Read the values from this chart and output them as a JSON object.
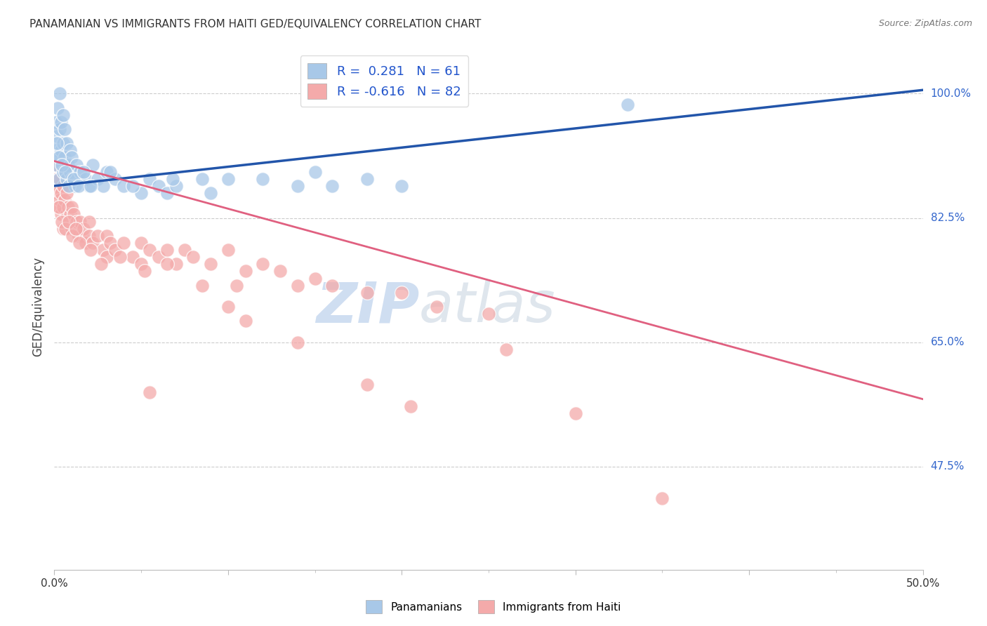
{
  "title": "PANAMANIAN VS IMMIGRANTS FROM HAITI GED/EQUIVALENCY CORRELATION CHART",
  "source": "Source: ZipAtlas.com",
  "ylabel": "GED/Equivalency",
  "yticks": [
    47.5,
    65.0,
    82.5,
    100.0
  ],
  "ytick_labels": [
    "47.5%",
    "65.0%",
    "82.5%",
    "100.0%"
  ],
  "xmin": 0.0,
  "xmax": 50.0,
  "ymin": 33.0,
  "ymax": 107.0,
  "legend_blue_label": "R =  0.281   N = 61",
  "legend_pink_label": "R = -0.616   N = 82",
  "legend_label_panamanians": "Panamanians",
  "legend_label_haiti": "Immigrants from Haiti",
  "watermark_zip": "ZIP",
  "watermark_atlas": "atlas",
  "blue_color": "#A8C8E8",
  "pink_color": "#F4AAAA",
  "blue_line_color": "#2255AA",
  "pink_line_color": "#E06080",
  "background_color": "#FFFFFF",
  "blue_line_x0": 0.0,
  "blue_line_y0": 87.0,
  "blue_line_x1": 50.0,
  "blue_line_y1": 100.5,
  "pink_line_x0": 0.0,
  "pink_line_y0": 90.5,
  "pink_line_x1": 50.0,
  "pink_line_y1": 57.0,
  "blue_points_x": [
    0.1,
    0.1,
    0.15,
    0.2,
    0.2,
    0.25,
    0.3,
    0.3,
    0.35,
    0.4,
    0.4,
    0.5,
    0.5,
    0.5,
    0.6,
    0.6,
    0.7,
    0.7,
    0.8,
    0.9,
    0.9,
    1.0,
    1.0,
    1.2,
    1.3,
    1.5,
    1.8,
    2.0,
    2.2,
    2.5,
    2.8,
    3.0,
    3.5,
    4.0,
    5.0,
    5.5,
    6.0,
    6.5,
    7.0,
    8.5,
    9.0,
    10.0,
    12.0,
    14.0,
    15.0,
    16.0,
    18.0,
    20.0,
    0.15,
    0.25,
    0.45,
    0.65,
    0.85,
    1.1,
    1.4,
    1.7,
    2.1,
    3.2,
    4.5,
    6.8,
    33.0
  ],
  "blue_points_y": [
    92.0,
    96.0,
    90.0,
    94.0,
    98.0,
    88.0,
    95.0,
    100.0,
    91.0,
    92.0,
    96.0,
    89.0,
    93.0,
    97.0,
    91.0,
    95.0,
    88.0,
    93.0,
    90.0,
    89.0,
    92.0,
    88.0,
    91.0,
    87.0,
    90.0,
    89.0,
    88.0,
    87.0,
    90.0,
    88.0,
    87.0,
    89.0,
    88.0,
    87.0,
    86.0,
    88.0,
    87.0,
    86.0,
    87.0,
    88.0,
    86.0,
    88.0,
    88.0,
    87.0,
    89.0,
    87.0,
    88.0,
    87.0,
    93.0,
    91.0,
    90.0,
    89.0,
    87.0,
    88.0,
    87.0,
    89.0,
    87.0,
    89.0,
    87.0,
    88.0,
    98.5
  ],
  "pink_points_x": [
    0.1,
    0.1,
    0.15,
    0.2,
    0.2,
    0.3,
    0.3,
    0.4,
    0.4,
    0.5,
    0.5,
    0.5,
    0.6,
    0.7,
    0.7,
    0.8,
    0.8,
    0.9,
    1.0,
    1.0,
    1.1,
    1.2,
    1.3,
    1.4,
    1.5,
    1.6,
    1.7,
    1.8,
    2.0,
    2.0,
    2.2,
    2.5,
    2.8,
    3.0,
    3.0,
    3.2,
    3.5,
    4.0,
    4.5,
    5.0,
    5.0,
    5.5,
    6.0,
    6.5,
    7.0,
    7.5,
    8.0,
    9.0,
    10.0,
    11.0,
    12.0,
    13.0,
    14.0,
    15.0,
    16.0,
    18.0,
    20.0,
    22.0,
    25.0,
    0.25,
    0.45,
    0.65,
    0.85,
    1.05,
    1.25,
    1.45,
    2.1,
    2.7,
    3.8,
    5.2,
    6.5,
    8.5,
    10.5,
    5.5,
    14.0,
    26.0,
    30.0,
    18.0,
    20.5,
    10.0,
    11.0,
    35.0
  ],
  "pink_points_y": [
    90.0,
    87.0,
    88.0,
    86.0,
    84.0,
    88.0,
    85.0,
    86.0,
    83.0,
    87.0,
    84.0,
    81.0,
    85.0,
    86.0,
    83.0,
    84.0,
    82.0,
    83.0,
    84.0,
    81.0,
    83.0,
    81.0,
    82.0,
    80.0,
    82.0,
    80.0,
    81.0,
    79.0,
    80.0,
    82.0,
    79.0,
    80.0,
    78.0,
    80.0,
    77.0,
    79.0,
    78.0,
    79.0,
    77.0,
    79.0,
    76.0,
    78.0,
    77.0,
    78.0,
    76.0,
    78.0,
    77.0,
    76.0,
    78.0,
    75.0,
    76.0,
    75.0,
    73.0,
    74.0,
    73.0,
    72.0,
    72.0,
    70.0,
    69.0,
    84.0,
    82.0,
    81.0,
    82.0,
    80.0,
    81.0,
    79.0,
    78.0,
    76.0,
    77.0,
    75.0,
    76.0,
    73.0,
    73.0,
    58.0,
    65.0,
    64.0,
    55.0,
    59.0,
    56.0,
    70.0,
    68.0,
    43.0
  ]
}
